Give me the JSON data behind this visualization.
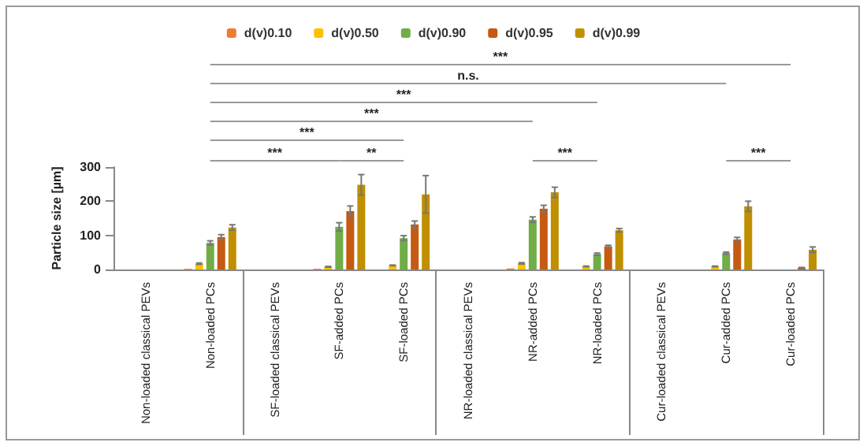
{
  "chart_data": {
    "type": "bar",
    "ylabel": "Particle size [µm]",
    "categories": [
      "Non-loaded classical PEVs",
      "Non-loaded PCs",
      "SF-loaded classical PEVs",
      "SF-added PCs",
      "SF-loaded PCs",
      "NR-loaded classical PEVs",
      "NR-added PCs",
      "NR-loaded PCs",
      "Cur-loaded classical PEVs",
      "Cur-added PCs",
      "Cur-loaded PCs"
    ],
    "series": [
      {
        "name": "d(v)0.10",
        "color": "#ed7d31",
        "values": [
          null,
          2,
          null,
          2,
          null,
          null,
          3,
          null,
          null,
          null,
          0
        ]
      },
      {
        "name": "d(v)0.50",
        "color": "#ffc000",
        "values": [
          null,
          17,
          null,
          8,
          12,
          null,
          18,
          9,
          null,
          9,
          null
        ],
        "errors": [
          null,
          2,
          null,
          1,
          1,
          null,
          2,
          1,
          null,
          1,
          null
        ]
      },
      {
        "name": "d(v)0.90",
        "color": "#70ad47",
        "values": [
          null,
          78,
          null,
          125,
          92,
          null,
          146,
          45,
          null,
          48,
          null
        ],
        "errors": [
          null,
          6,
          null,
          12,
          7,
          null,
          8,
          3,
          null,
          3,
          null
        ]
      },
      {
        "name": "d(v)0.95",
        "color": "#c55a11",
        "values": [
          null,
          95,
          null,
          171,
          132,
          null,
          178,
          68,
          null,
          88,
          5
        ],
        "errors": [
          null,
          7,
          null,
          15,
          10,
          null,
          10,
          3,
          null,
          6,
          1
        ]
      },
      {
        "name": "d(v)0.99",
        "color": "#bf8f00",
        "values": [
          null,
          123,
          null,
          248,
          220,
          null,
          226,
          115,
          null,
          185,
          58
        ],
        "errors": [
          null,
          8,
          null,
          30,
          55,
          null,
          15,
          5,
          null,
          15,
          8
        ]
      }
    ],
    "ylim": [
      0,
      300
    ],
    "yticks": [
      0,
      100,
      200,
      300
    ],
    "grid": false,
    "legend": "top",
    "annotations": [
      "***",
      "n.s.",
      "***",
      "***",
      "***",
      "***",
      "**",
      "***",
      "***"
    ]
  }
}
